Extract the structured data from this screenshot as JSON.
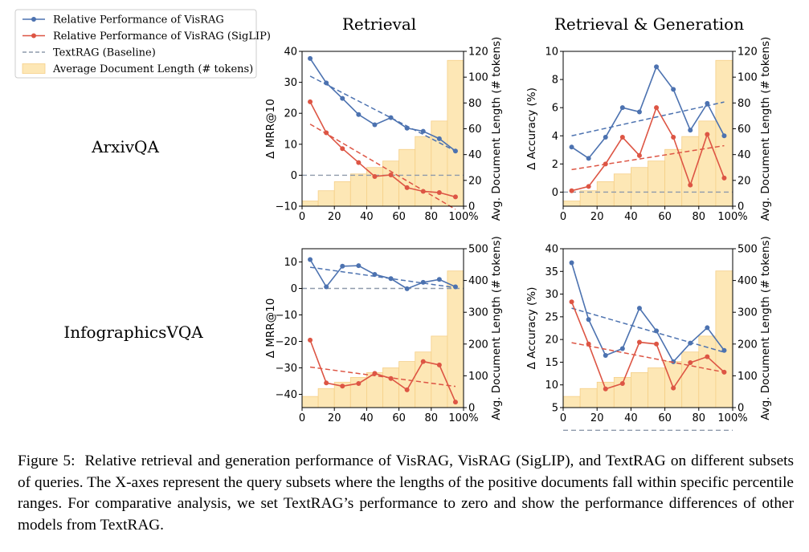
{
  "figure": {
    "col_titles": [
      "Retrieval",
      "Retrieval & Generation"
    ],
    "row_labels": [
      "ArxivQA",
      "InfographicsVQA"
    ],
    "caption_label": "Figure 5:",
    "caption_text": "Relative retrieval and generation performance of VisRAG, VisRAG (SigLIP), and TextRAG on different subsets of queries. The X-axes represent the query subsets where the lengths of the positive documents fall within specific percentile ranges. For comparative analysis, we set TextRAG’s performance to zero and show the performance differences of other models from TextRAG."
  },
  "legend": [
    {
      "label": "Relative Performance of VisRAG",
      "style": "line-marker",
      "color": "#4c72b0"
    },
    {
      "label": "Relative Performance of VisRAG (SigLIP)",
      "style": "line-marker",
      "color": "#dd5544"
    },
    {
      "label": "TextRAG (Baseline)",
      "style": "dashed",
      "color": "#8e9aab"
    },
    {
      "label": "Average Document Length (# tokens)",
      "style": "bar",
      "color": "#fde7b5"
    }
  ],
  "colors": {
    "visrag": "#4c72b0",
    "siglip": "#dd5544",
    "baseline": "#8e9aab",
    "bars": "#fde7b5",
    "bar_edge": "#f5cf88"
  },
  "chart_data": [
    {
      "id": "arxiv-retrieval",
      "type": "line+bar",
      "xlabel": "",
      "ylabel": "Δ MRR@10",
      "y2label": "Avg. Document Length (# tokens)",
      "x": [
        5,
        15,
        25,
        35,
        45,
        55,
        65,
        75,
        85,
        95
      ],
      "xlim": [
        0,
        100
      ],
      "xticks": [
        0,
        20,
        40,
        60,
        80,
        100
      ],
      "xtick_labels": [
        "0",
        "20",
        "40",
        "60",
        "80",
        "100%"
      ],
      "ylim": [
        -10,
        40
      ],
      "yticks": [
        -10,
        0,
        10,
        20,
        30,
        40
      ],
      "ytick_labels": [
        "−10",
        "0",
        "10",
        "20",
        "30",
        "40"
      ],
      "y2lim": [
        0,
        120
      ],
      "y2ticks": [
        0,
        20,
        40,
        60,
        80,
        100,
        120
      ],
      "y2tick_labels": [
        "0",
        "20",
        "40",
        "60",
        "80",
        "100",
        "120"
      ],
      "series": [
        {
          "name": "Relative Performance of VisRAG",
          "values": [
            37.7,
            29.8,
            24.8,
            19.6,
            16.3,
            18.6,
            15.2,
            14.2,
            11.8,
            7.8
          ],
          "trend": [
            32,
            7.8
          ]
        },
        {
          "name": "Relative Performance of VisRAG (SigLIP)",
          "values": [
            23.7,
            13.7,
            8.6,
            4.1,
            -0.4,
            0.1,
            -4.0,
            -5.2,
            -5.6,
            -7.0
          ],
          "trend": [
            16.5,
            -11.0
          ]
        }
      ],
      "baseline": 0,
      "bars": [
        4,
        12,
        19,
        25,
        30,
        35,
        44,
        54,
        66,
        113
      ]
    },
    {
      "id": "arxiv-generation",
      "type": "line+bar",
      "xlabel": "",
      "ylabel": "Δ Accuracy (%)",
      "y2label": "Avg. Document Length (# tokens)",
      "x": [
        5,
        15,
        25,
        35,
        45,
        55,
        65,
        75,
        85,
        95
      ],
      "xlim": [
        0,
        100
      ],
      "xticks": [
        0,
        20,
        40,
        60,
        80,
        100
      ],
      "xtick_labels": [
        "0",
        "20",
        "40",
        "60",
        "80",
        "100%"
      ],
      "ylim": [
        -1,
        10
      ],
      "yticks": [
        0,
        2,
        4,
        6,
        8,
        10
      ],
      "ytick_labels": [
        "0",
        "2",
        "4",
        "6",
        "8",
        "10"
      ],
      "y2lim": [
        0,
        120
      ],
      "y2ticks": [
        0,
        20,
        40,
        60,
        80,
        100,
        120
      ],
      "y2tick_labels": [
        "0",
        "20",
        "40",
        "60",
        "80",
        "100",
        "120"
      ],
      "series": [
        {
          "name": "Relative Performance of VisRAG",
          "values": [
            3.2,
            2.4,
            3.9,
            6.0,
            5.7,
            8.9,
            7.3,
            4.4,
            6.3,
            4.0
          ],
          "trend": [
            4.0,
            6.4
          ]
        },
        {
          "name": "Relative Performance of VisRAG (SigLIP)",
          "values": [
            0.1,
            0.4,
            2.0,
            3.9,
            2.6,
            6.0,
            3.9,
            0.5,
            4.1,
            1.0
          ],
          "trend": [
            1.6,
            3.3
          ]
        }
      ],
      "baseline": 0,
      "bars": [
        4,
        12,
        19,
        25,
        30,
        35,
        44,
        54,
        66,
        113
      ]
    },
    {
      "id": "infographics-retrieval",
      "type": "line+bar",
      "xlabel": "",
      "ylabel": "Δ MRR@10",
      "y2label": "Avg. Document Length (# tokens)",
      "x": [
        5,
        15,
        25,
        35,
        45,
        55,
        65,
        75,
        85,
        95
      ],
      "xlim": [
        0,
        100
      ],
      "xticks": [
        0,
        20,
        40,
        60,
        80,
        100
      ],
      "xtick_labels": [
        "0",
        "20",
        "40",
        "60",
        "80",
        "100%"
      ],
      "ylim": [
        -45,
        15
      ],
      "yticks": [
        -40,
        -30,
        -20,
        -10,
        0,
        10
      ],
      "ytick_labels": [
        "−40",
        "−30",
        "−20",
        "−10",
        "0",
        "10"
      ],
      "y2lim": [
        0,
        500
      ],
      "y2ticks": [
        0,
        100,
        200,
        300,
        400,
        500
      ],
      "y2tick_labels": [
        "0",
        "100",
        "200",
        "300",
        "400",
        "500"
      ],
      "series": [
        {
          "name": "Relative Performance of VisRAG",
          "values": [
            10.9,
            0.6,
            8.4,
            8.6,
            5.3,
            3.7,
            -0.1,
            2.3,
            3.4,
            0.6
          ],
          "trend": [
            8.0,
            0.3
          ]
        },
        {
          "name": "Relative Performance of VisRAG (SigLIP)",
          "values": [
            -19.5,
            -35.7,
            -36.9,
            -35.9,
            -32.1,
            -34.0,
            -38.3,
            -27.6,
            -28.9,
            -42.9
          ],
          "trend": [
            -29.7,
            -37.0
          ]
        }
      ],
      "baseline": 0,
      "bars": [
        35,
        60,
        80,
        95,
        110,
        125,
        145,
        175,
        225,
        430
      ]
    },
    {
      "id": "infographics-generation",
      "type": "line+bar",
      "xlabel": "",
      "ylabel": "Δ Accuracy (%)",
      "y2label": "Avg. Document Length (# tokens)",
      "x": [
        5,
        15,
        25,
        35,
        45,
        55,
        65,
        75,
        85,
        95
      ],
      "xlim": [
        0,
        100
      ],
      "xticks": [
        0,
        20,
        40,
        60,
        80,
        100
      ],
      "xtick_labels": [
        "0",
        "20",
        "40",
        "60",
        "80",
        "100%"
      ],
      "ylim": [
        5,
        40
      ],
      "yticks": [
        5,
        10,
        15,
        20,
        25,
        30,
        35,
        40
      ],
      "ytick_labels": [
        "5",
        "10",
        "15",
        "20",
        "25",
        "30",
        "35",
        "40"
      ],
      "y2lim": [
        0,
        500
      ],
      "y2ticks": [
        0,
        100,
        200,
        300,
        400,
        500
      ],
      "y2tick_labels": [
        "0",
        "100",
        "200",
        "300",
        "400",
        "500"
      ],
      "series": [
        {
          "name": "Relative Performance of VisRAG",
          "values": [
            36.9,
            24.4,
            16.5,
            18.0,
            26.9,
            21.9,
            15.1,
            19.2,
            22.6,
            17.6
          ],
          "trend": [
            26.9,
            17.2
          ]
        },
        {
          "name": "Relative Performance of VisRAG (SigLIP)",
          "values": [
            28.3,
            19.0,
            9.1,
            10.3,
            19.4,
            19.0,
            9.3,
            14.9,
            16.2,
            12.8
          ],
          "trend": [
            19.3,
            12.8
          ]
        }
      ],
      "baseline": 0,
      "bars": [
        35,
        60,
        80,
        95,
        110,
        125,
        145,
        175,
        225,
        430
      ]
    }
  ]
}
